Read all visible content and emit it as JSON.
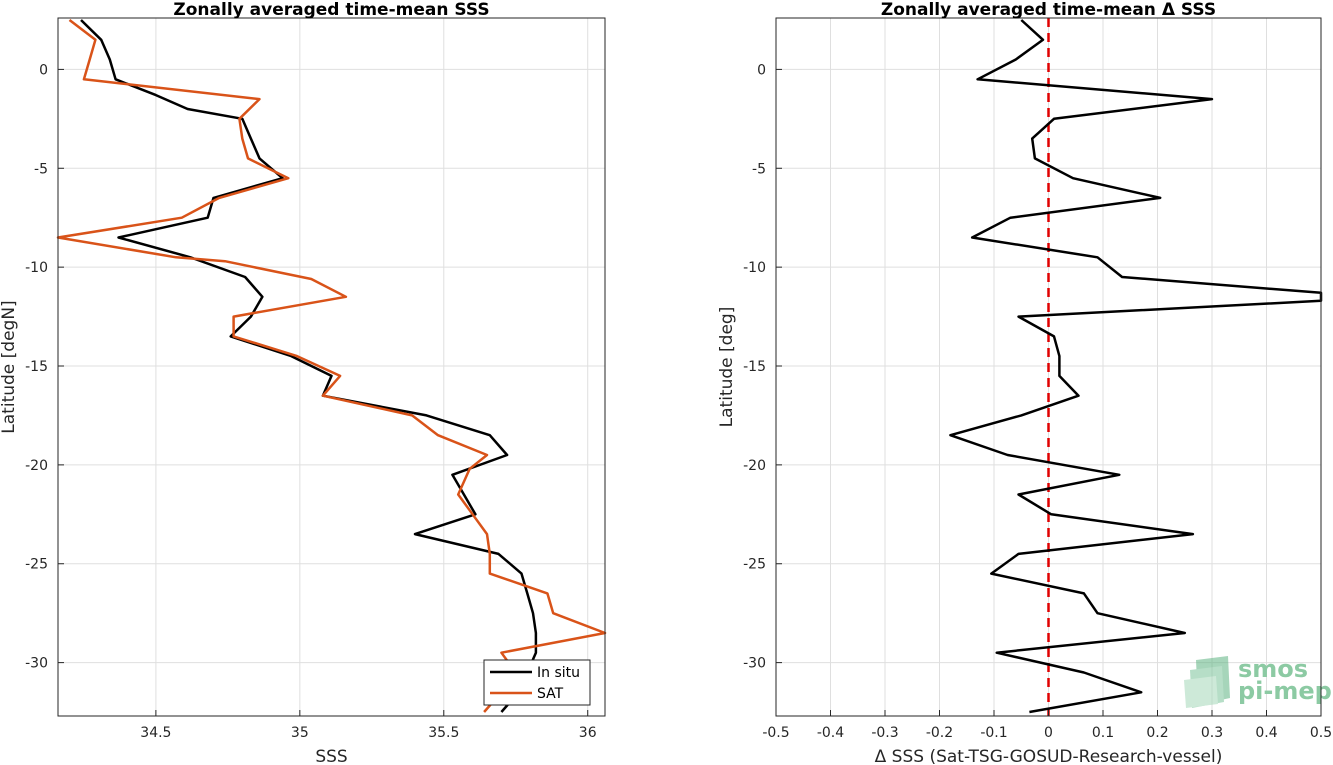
{
  "chart_data": [
    {
      "type": "line",
      "title": "Zonally averaged time-mean SSS",
      "xlabel": "SSS",
      "ylabel": "Latitude [degN]",
      "xlim": [
        34.16,
        36.06
      ],
      "ylim": [
        -32.7,
        2.6
      ],
      "xticks": [
        34.5,
        35,
        35.5,
        36
      ],
      "yticks": [
        0,
        -5,
        -10,
        -15,
        -20,
        -25,
        -30
      ],
      "grid": true,
      "legend": "bottom-right",
      "series": [
        {
          "name": "In situ",
          "color": "#000000",
          "points": [
            [
              34.24,
              2.5
            ],
            [
              34.31,
              1.5
            ],
            [
              34.34,
              0.5
            ],
            [
              34.36,
              -0.5
            ],
            [
              34.5,
              -1.3
            ],
            [
              34.61,
              -2
            ],
            [
              34.8,
              -2.5
            ],
            [
              34.83,
              -3.5
            ],
            [
              34.86,
              -4.5
            ],
            [
              34.94,
              -5.5
            ],
            [
              34.7,
              -6.5
            ],
            [
              34.68,
              -7.5
            ],
            [
              34.37,
              -8.5
            ],
            [
              34.62,
              -9.5
            ],
            [
              34.81,
              -10.5
            ],
            [
              34.87,
              -11.5
            ],
            [
              34.83,
              -12.5
            ],
            [
              34.76,
              -13.5
            ],
            [
              34.97,
              -14.5
            ],
            [
              35.11,
              -15.5
            ],
            [
              35.08,
              -16.5
            ],
            [
              35.44,
              -17.5
            ],
            [
              35.66,
              -18.5
            ],
            [
              35.72,
              -19.5
            ],
            [
              35.53,
              -20.5
            ],
            [
              35.57,
              -21.5
            ],
            [
              35.61,
              -22.5
            ],
            [
              35.4,
              -23.5
            ],
            [
              35.69,
              -24.5
            ],
            [
              35.77,
              -25.5
            ],
            [
              35.79,
              -26.5
            ],
            [
              35.81,
              -27.5
            ],
            [
              35.82,
              -28.5
            ],
            [
              35.82,
              -29.5
            ],
            [
              35.79,
              -30.5
            ],
            [
              35.76,
              -31.5
            ],
            [
              35.7,
              -32.5
            ]
          ]
        },
        {
          "name": "SAT",
          "color": "#d95319",
          "points": [
            [
              34.2,
              2.5
            ],
            [
              34.29,
              1.5
            ],
            [
              34.27,
              0.5
            ],
            [
              34.25,
              -0.5
            ],
            [
              34.86,
              -1.5
            ],
            [
              34.79,
              -2.5
            ],
            [
              34.8,
              -3.5
            ],
            [
              34.82,
              -4.5
            ],
            [
              34.96,
              -5.5
            ],
            [
              34.72,
              -6.5
            ],
            [
              34.59,
              -7.5
            ],
            [
              34.16,
              -8.5
            ],
            [
              34.57,
              -9.5
            ],
            [
              34.74,
              -9.7
            ],
            [
              35.04,
              -10.6
            ],
            [
              35.16,
              -11.5
            ],
            [
              34.77,
              -12.5
            ],
            [
              34.77,
              -13.5
            ],
            [
              34.99,
              -14.5
            ],
            [
              35.14,
              -15.5
            ],
            [
              35.08,
              -16.5
            ],
            [
              35.39,
              -17.5
            ],
            [
              35.48,
              -18.5
            ],
            [
              35.65,
              -19.5
            ],
            [
              35.59,
              -20.2
            ],
            [
              35.55,
              -21.5
            ],
            [
              35.6,
              -22.5
            ],
            [
              35.65,
              -23.5
            ],
            [
              35.66,
              -24.5
            ],
            [
              35.66,
              -25.5
            ],
            [
              35.86,
              -26.5
            ],
            [
              35.88,
              -27.5
            ],
            [
              36.06,
              -28.5
            ],
            [
              35.7,
              -29.5
            ],
            [
              35.75,
              -30.5
            ],
            [
              35.7,
              -31.5
            ],
            [
              35.64,
              -32.5
            ]
          ]
        }
      ]
    },
    {
      "type": "line",
      "title": "Zonally averaged time-mean Δ SSS",
      "xlabel": "Δ SSS (Sat-TSG-GOSUD-Research-vessel)",
      "ylabel": "Latitude [deg]",
      "xlim": [
        -0.5,
        0.5
      ],
      "ylim": [
        -32.7,
        2.6
      ],
      "xticks": [
        -0.5,
        -0.4,
        -0.3,
        -0.2,
        -0.1,
        0,
        0.1,
        0.2,
        0.3,
        0.4,
        0.5
      ],
      "xticklabels": [
        "-0.5",
        "-0.4",
        "-0.3",
        "-0.2",
        "-0.1",
        "0",
        "0.1",
        "0.2",
        "0.3",
        "0.4",
        "0.5"
      ],
      "yticks": [
        0,
        -5,
        -10,
        -15,
        -20,
        -25,
        -30
      ],
      "grid": true,
      "zero_line": {
        "x": 0,
        "color": "#e00000",
        "style": "dashed"
      },
      "series": [
        {
          "color": "#000000",
          "points": [
            [
              -0.05,
              2.5
            ],
            [
              -0.01,
              1.5
            ],
            [
              -0.06,
              0.5
            ],
            [
              -0.13,
              -0.5
            ],
            [
              0.3,
              -1.5
            ],
            [
              0.01,
              -2.5
            ],
            [
              -0.03,
              -3.5
            ],
            [
              -0.025,
              -4.5
            ],
            [
              0.045,
              -5.5
            ],
            [
              0.205,
              -6.5
            ],
            [
              -0.07,
              -7.5
            ],
            [
              -0.14,
              -8.5
            ],
            [
              0.09,
              -9.5
            ],
            [
              0.135,
              -10.5
            ],
            [
              0.5,
              -11.3
            ],
            [
              0.5,
              -11.7
            ],
            [
              -0.055,
              -12.5
            ],
            [
              0.01,
              -13.5
            ],
            [
              0.02,
              -14.5
            ],
            [
              0.02,
              -15.5
            ],
            [
              0.055,
              -16.5
            ],
            [
              -0.05,
              -17.5
            ],
            [
              -0.18,
              -18.5
            ],
            [
              -0.075,
              -19.5
            ],
            [
              0.13,
              -20.5
            ],
            [
              -0.055,
              -21.5
            ],
            [
              0.005,
              -22.5
            ],
            [
              0.265,
              -23.5
            ],
            [
              -0.055,
              -24.5
            ],
            [
              -0.105,
              -25.5
            ],
            [
              0.065,
              -26.5
            ],
            [
              0.09,
              -27.5
            ],
            [
              0.25,
              -28.5
            ],
            [
              -0.095,
              -29.5
            ],
            [
              0.065,
              -30.5
            ],
            [
              0.17,
              -31.5
            ],
            [
              -0.035,
              -32.5
            ]
          ]
        }
      ]
    }
  ],
  "legend": {
    "items": [
      "In situ",
      "SAT"
    ]
  },
  "logo": {
    "line1": "smos",
    "line2": "pi-mep"
  }
}
